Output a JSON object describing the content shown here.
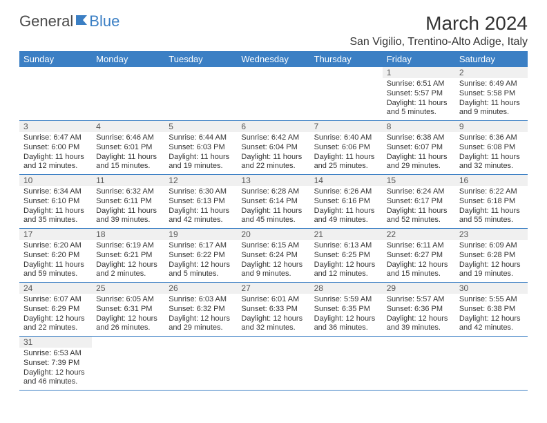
{
  "logo": {
    "text1": "General",
    "text2": "Blue"
  },
  "title": "March 2024",
  "location": "San Vigilio, Trentino-Alto Adige, Italy",
  "colors": {
    "header_bg": "#3b7fc4",
    "header_text": "#ffffff",
    "daynum_bg": "#f0f0f0",
    "border": "#3b7fc4",
    "body_text": "#333333"
  },
  "weekdays": [
    "Sunday",
    "Monday",
    "Tuesday",
    "Wednesday",
    "Thursday",
    "Friday",
    "Saturday"
  ],
  "first_day_index": 5,
  "days_in_month": 31,
  "days": {
    "1": {
      "sunrise": "6:51 AM",
      "sunset": "5:57 PM",
      "daylight_h": 11,
      "daylight_m": 5
    },
    "2": {
      "sunrise": "6:49 AM",
      "sunset": "5:58 PM",
      "daylight_h": 11,
      "daylight_m": 9
    },
    "3": {
      "sunrise": "6:47 AM",
      "sunset": "6:00 PM",
      "daylight_h": 11,
      "daylight_m": 12
    },
    "4": {
      "sunrise": "6:46 AM",
      "sunset": "6:01 PM",
      "daylight_h": 11,
      "daylight_m": 15
    },
    "5": {
      "sunrise": "6:44 AM",
      "sunset": "6:03 PM",
      "daylight_h": 11,
      "daylight_m": 19
    },
    "6": {
      "sunrise": "6:42 AM",
      "sunset": "6:04 PM",
      "daylight_h": 11,
      "daylight_m": 22
    },
    "7": {
      "sunrise": "6:40 AM",
      "sunset": "6:06 PM",
      "daylight_h": 11,
      "daylight_m": 25
    },
    "8": {
      "sunrise": "6:38 AM",
      "sunset": "6:07 PM",
      "daylight_h": 11,
      "daylight_m": 29
    },
    "9": {
      "sunrise": "6:36 AM",
      "sunset": "6:08 PM",
      "daylight_h": 11,
      "daylight_m": 32
    },
    "10": {
      "sunrise": "6:34 AM",
      "sunset": "6:10 PM",
      "daylight_h": 11,
      "daylight_m": 35
    },
    "11": {
      "sunrise": "6:32 AM",
      "sunset": "6:11 PM",
      "daylight_h": 11,
      "daylight_m": 39
    },
    "12": {
      "sunrise": "6:30 AM",
      "sunset": "6:13 PM",
      "daylight_h": 11,
      "daylight_m": 42
    },
    "13": {
      "sunrise": "6:28 AM",
      "sunset": "6:14 PM",
      "daylight_h": 11,
      "daylight_m": 45
    },
    "14": {
      "sunrise": "6:26 AM",
      "sunset": "6:16 PM",
      "daylight_h": 11,
      "daylight_m": 49
    },
    "15": {
      "sunrise": "6:24 AM",
      "sunset": "6:17 PM",
      "daylight_h": 11,
      "daylight_m": 52
    },
    "16": {
      "sunrise": "6:22 AM",
      "sunset": "6:18 PM",
      "daylight_h": 11,
      "daylight_m": 55
    },
    "17": {
      "sunrise": "6:20 AM",
      "sunset": "6:20 PM",
      "daylight_h": 11,
      "daylight_m": 59
    },
    "18": {
      "sunrise": "6:19 AM",
      "sunset": "6:21 PM",
      "daylight_h": 12,
      "daylight_m": 2
    },
    "19": {
      "sunrise": "6:17 AM",
      "sunset": "6:22 PM",
      "daylight_h": 12,
      "daylight_m": 5
    },
    "20": {
      "sunrise": "6:15 AM",
      "sunset": "6:24 PM",
      "daylight_h": 12,
      "daylight_m": 9
    },
    "21": {
      "sunrise": "6:13 AM",
      "sunset": "6:25 PM",
      "daylight_h": 12,
      "daylight_m": 12
    },
    "22": {
      "sunrise": "6:11 AM",
      "sunset": "6:27 PM",
      "daylight_h": 12,
      "daylight_m": 15
    },
    "23": {
      "sunrise": "6:09 AM",
      "sunset": "6:28 PM",
      "daylight_h": 12,
      "daylight_m": 19
    },
    "24": {
      "sunrise": "6:07 AM",
      "sunset": "6:29 PM",
      "daylight_h": 12,
      "daylight_m": 22
    },
    "25": {
      "sunrise": "6:05 AM",
      "sunset": "6:31 PM",
      "daylight_h": 12,
      "daylight_m": 26
    },
    "26": {
      "sunrise": "6:03 AM",
      "sunset": "6:32 PM",
      "daylight_h": 12,
      "daylight_m": 29
    },
    "27": {
      "sunrise": "6:01 AM",
      "sunset": "6:33 PM",
      "daylight_h": 12,
      "daylight_m": 32
    },
    "28": {
      "sunrise": "5:59 AM",
      "sunset": "6:35 PM",
      "daylight_h": 12,
      "daylight_m": 36
    },
    "29": {
      "sunrise": "5:57 AM",
      "sunset": "6:36 PM",
      "daylight_h": 12,
      "daylight_m": 39
    },
    "30": {
      "sunrise": "5:55 AM",
      "sunset": "6:38 PM",
      "daylight_h": 12,
      "daylight_m": 42
    },
    "31": {
      "sunrise": "6:53 AM",
      "sunset": "7:39 PM",
      "daylight_h": 12,
      "daylight_m": 46
    }
  },
  "labels": {
    "sunrise_prefix": "Sunrise: ",
    "sunset_prefix": "Sunset: ",
    "daylight_prefix": "Daylight: ",
    "hours_word": " hours",
    "and_word": "and ",
    "minutes_word": " minutes."
  }
}
